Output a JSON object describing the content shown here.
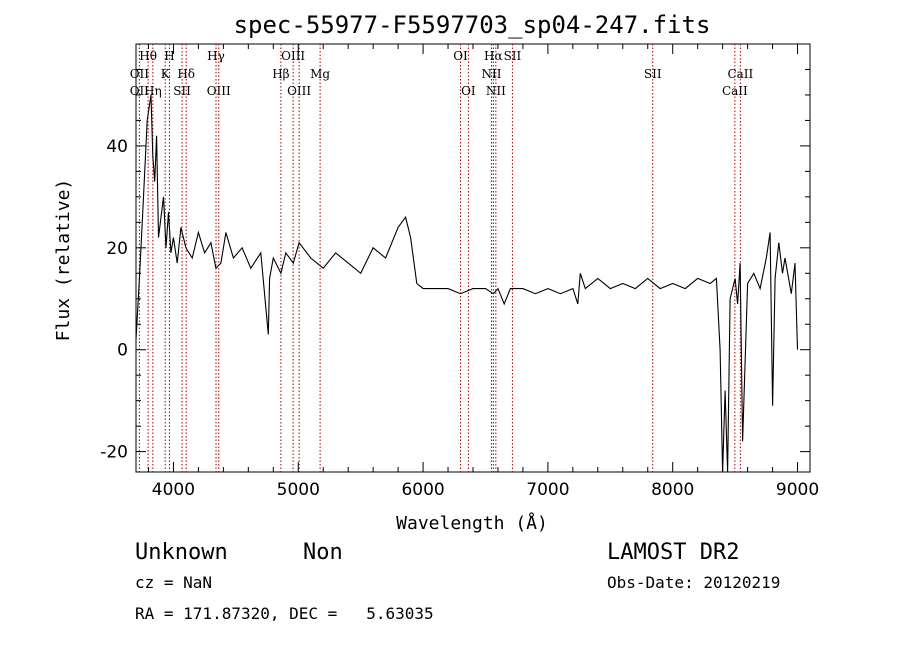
{
  "chart_data": {
    "type": "line",
    "title": "spec-55977-F5597703_sp04-247.fits",
    "xlabel": "Wavelength (Å)",
    "ylabel": "Flux (relative)",
    "xlim": [
      3700,
      9100
    ],
    "ylim": [
      -24,
      60
    ],
    "xticks": [
      4000,
      5000,
      6000,
      7000,
      8000,
      9000
    ],
    "yticks": [
      -20,
      0,
      20,
      40
    ],
    "series": [
      {
        "values_x": [
          3700,
          3730,
          3760,
          3790,
          3820,
          3835,
          3850,
          3865,
          3880,
          3900,
          3920,
          3940,
          3960,
          3980,
          4000,
          4030,
          4060,
          4100,
          4150,
          4200,
          4250,
          4300,
          4340,
          4380,
          4420,
          4480,
          4550,
          4620,
          4700,
          4760,
          4770,
          4800,
          4861,
          4900,
          4960,
          5007,
          5100,
          5200,
          5300,
          5400,
          5500,
          5600,
          5700,
          5800,
          5860,
          5900,
          5950,
          6000,
          6100,
          6200,
          6300,
          6400,
          6500,
          6563,
          6600,
          6650,
          6700,
          6800,
          6900,
          7000,
          7100,
          7200,
          7240,
          7260,
          7300,
          7400,
          7500,
          7600,
          7700,
          7800,
          7900,
          8000,
          8100,
          8200,
          8300,
          8350,
          8380,
          8400,
          8420,
          8440,
          8460,
          8500,
          8520,
          8540,
          8560,
          8600,
          8650,
          8700,
          8750,
          8780,
          8800,
          8820,
          8850,
          8880,
          8900,
          8950,
          8980,
          9000
        ],
        "values_y": [
          2,
          15,
          30,
          45,
          50,
          38,
          33,
          42,
          22,
          26,
          30,
          20,
          27,
          19,
          22,
          17,
          24,
          20,
          18,
          23,
          19,
          21,
          16,
          17,
          23,
          18,
          20,
          16,
          19,
          3,
          14,
          18,
          15,
          19,
          17,
          21,
          18,
          16,
          19,
          17,
          15,
          20,
          18,
          24,
          26,
          22,
          13,
          12,
          12,
          12,
          11,
          12,
          12,
          11,
          12,
          9,
          12,
          12,
          11,
          12,
          11,
          12,
          9,
          15,
          12,
          14,
          12,
          13,
          12,
          14,
          12,
          13,
          12,
          14,
          13,
          14,
          0,
          -24,
          -8,
          -24,
          10,
          14,
          9,
          17,
          -18,
          13,
          15,
          12,
          18,
          23,
          -11,
          14,
          21,
          15,
          18,
          11,
          17,
          0
        ]
      }
    ],
    "line_markers": [
      {
        "name": "OII",
        "x": 3727,
        "row": 1
      },
      {
        "name": "OII",
        "x": 3727,
        "row": 2
      },
      {
        "name": "Hθ",
        "x": 3797,
        "row": 0
      },
      {
        "name": "Hη",
        "x": 3835,
        "row": 2
      },
      {
        "name": "H",
        "x": 3968,
        "row": 0
      },
      {
        "name": "K",
        "x": 3934,
        "row": 1
      },
      {
        "name": "Hδ",
        "x": 4102,
        "row": 1
      },
      {
        "name": "SII",
        "x": 4069,
        "row": 2
      },
      {
        "name": "Hγ",
        "x": 4341,
        "row": 0
      },
      {
        "name": "OIII",
        "x": 4363,
        "row": 2
      },
      {
        "name": "OIII",
        "x": 4959,
        "row": 0
      },
      {
        "name": "Hβ",
        "x": 4861,
        "row": 1
      },
      {
        "name": "OIII",
        "x": 5007,
        "row": 2
      },
      {
        "name": "Mg",
        "x": 5175,
        "row": 1
      },
      {
        "name": "OI",
        "x": 6300,
        "row": 0
      },
      {
        "name": "OI",
        "x": 6363,
        "row": 2
      },
      {
        "name": "Hα",
        "x": 6563,
        "row": 0
      },
      {
        "name": "SII",
        "x": 6716,
        "row": 0
      },
      {
        "name": "NII",
        "x": 6548,
        "row": 1
      },
      {
        "name": "NII",
        "x": 6583,
        "row": 2
      },
      {
        "name": "SII",
        "x": 7840,
        "row": 1
      },
      {
        "name": "CaII",
        "x": 8542,
        "row": 1
      },
      {
        "name": "CaII",
        "x": 8498,
        "row": 2
      }
    ]
  },
  "info": {
    "class": "Unknown",
    "subclass": "Non",
    "cz": "cz = NaN",
    "radec": "RA = 171.87320, DEC =   5.63035",
    "survey": "LAMOST DR2",
    "obs_date": "Obs-Date: 20120219"
  }
}
